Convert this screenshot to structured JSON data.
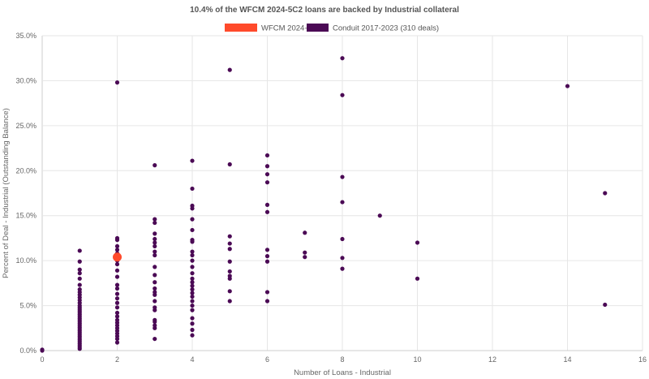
{
  "chart_data": {
    "type": "scatter",
    "title": "10.4% of the WFCM 2024-5C2 loans are backed by Industrial collateral",
    "xlabel": "Number of Loans - Industrial",
    "ylabel": "Percent of Deal - Industrial (Outstanding Balance)",
    "xlim": [
      0,
      16
    ],
    "ylim": [
      0,
      35
    ],
    "x_ticks": [
      "0",
      "2",
      "4",
      "6",
      "8",
      "10",
      "12",
      "14",
      "16"
    ],
    "y_ticks": [
      "0.0%",
      "5.0%",
      "10.0%",
      "15.0%",
      "20.0%",
      "25.0%",
      "30.0%",
      "35.0%"
    ],
    "grid": true,
    "legend_position": "top",
    "series": [
      {
        "name": "WFCM 2024-5C2",
        "color": "#ff4a2b",
        "points": [
          [
            2,
            10.4
          ]
        ]
      },
      {
        "name": "Conduit 2017-2023 (310 deals)",
        "color": "#4b0a55",
        "points": [
          [
            0,
            0.0
          ],
          [
            0,
            0.1
          ],
          [
            1,
            0.2
          ],
          [
            1,
            0.4
          ],
          [
            1,
            0.6
          ],
          [
            1,
            0.8
          ],
          [
            1,
            1.0
          ],
          [
            1,
            1.2
          ],
          [
            1,
            1.4
          ],
          [
            1,
            1.6
          ],
          [
            1,
            1.8
          ],
          [
            1,
            2.0
          ],
          [
            1,
            2.2
          ],
          [
            1,
            2.4
          ],
          [
            1,
            2.6
          ],
          [
            1,
            2.8
          ],
          [
            1,
            3.0
          ],
          [
            1,
            3.2
          ],
          [
            1,
            3.4
          ],
          [
            1,
            3.6
          ],
          [
            1,
            3.8
          ],
          [
            1,
            4.0
          ],
          [
            1,
            4.2
          ],
          [
            1,
            4.4
          ],
          [
            1,
            4.6
          ],
          [
            1,
            4.8
          ],
          [
            1,
            5.0
          ],
          [
            1,
            5.3
          ],
          [
            1,
            5.6
          ],
          [
            1,
            5.9
          ],
          [
            1,
            6.2
          ],
          [
            1,
            6.5
          ],
          [
            1,
            6.8
          ],
          [
            1,
            7.3
          ],
          [
            1,
            8.0
          ],
          [
            1,
            8.6
          ],
          [
            1,
            9.0
          ],
          [
            1,
            9.9
          ],
          [
            1,
            11.1
          ],
          [
            2,
            0.9
          ],
          [
            2,
            1.3
          ],
          [
            2,
            1.6
          ],
          [
            2,
            1.9
          ],
          [
            2,
            2.2
          ],
          [
            2,
            2.5
          ],
          [
            2,
            2.8
          ],
          [
            2,
            3.1
          ],
          [
            2,
            3.4
          ],
          [
            2,
            3.8
          ],
          [
            2,
            4.2
          ],
          [
            2,
            4.8
          ],
          [
            2,
            5.3
          ],
          [
            2,
            5.8
          ],
          [
            2,
            6.3
          ],
          [
            2,
            6.9
          ],
          [
            2,
            7.3
          ],
          [
            2,
            8.2
          ],
          [
            2,
            8.9
          ],
          [
            2,
            9.6
          ],
          [
            2,
            10.0
          ],
          [
            2,
            10.8
          ],
          [
            2,
            11.2
          ],
          [
            2,
            11.6
          ],
          [
            2,
            12.3
          ],
          [
            2,
            12.5
          ],
          [
            2,
            29.8
          ],
          [
            3,
            1.3
          ],
          [
            3,
            2.5
          ],
          [
            3,
            2.8
          ],
          [
            3,
            3.2
          ],
          [
            3,
            3.4
          ],
          [
            3,
            4.5
          ],
          [
            3,
            4.8
          ],
          [
            3,
            5.5
          ],
          [
            3,
            6.2
          ],
          [
            3,
            6.5
          ],
          [
            3,
            6.9
          ],
          [
            3,
            7.6
          ],
          [
            3,
            8.4
          ],
          [
            3,
            9.3
          ],
          [
            3,
            10.6
          ],
          [
            3,
            11.0
          ],
          [
            3,
            11.6
          ],
          [
            3,
            12.0
          ],
          [
            3,
            12.4
          ],
          [
            3,
            13.0
          ],
          [
            3,
            14.2
          ],
          [
            3,
            14.6
          ],
          [
            3,
            20.6
          ],
          [
            4,
            1.7
          ],
          [
            4,
            2.3
          ],
          [
            4,
            3.0
          ],
          [
            4,
            3.6
          ],
          [
            4,
            4.5
          ],
          [
            4,
            5.0
          ],
          [
            4,
            5.5
          ],
          [
            4,
            6.0
          ],
          [
            4,
            6.4
          ],
          [
            4,
            6.8
          ],
          [
            4,
            7.2
          ],
          [
            4,
            7.6
          ],
          [
            4,
            8.0
          ],
          [
            4,
            8.6
          ],
          [
            4,
            9.3
          ],
          [
            4,
            10.0
          ],
          [
            4,
            10.6
          ],
          [
            4,
            11.0
          ],
          [
            4,
            12.1
          ],
          [
            4,
            12.3
          ],
          [
            4,
            13.4
          ],
          [
            4,
            14.6
          ],
          [
            4,
            15.8
          ],
          [
            4,
            16.1
          ],
          [
            4,
            18.0
          ],
          [
            4,
            21.1
          ],
          [
            5,
            5.5
          ],
          [
            5,
            6.6
          ],
          [
            5,
            8.0
          ],
          [
            5,
            8.3
          ],
          [
            5,
            8.8
          ],
          [
            5,
            9.9
          ],
          [
            5,
            11.3
          ],
          [
            5,
            11.9
          ],
          [
            5,
            12.7
          ],
          [
            5,
            20.7
          ],
          [
            5,
            31.2
          ],
          [
            6,
            5.5
          ],
          [
            6,
            6.5
          ],
          [
            6,
            9.9
          ],
          [
            6,
            10.5
          ],
          [
            6,
            11.2
          ],
          [
            6,
            15.4
          ],
          [
            6,
            16.2
          ],
          [
            6,
            18.7
          ],
          [
            6,
            19.6
          ],
          [
            6,
            20.5
          ],
          [
            6,
            21.7
          ],
          [
            7,
            10.4
          ],
          [
            7,
            10.9
          ],
          [
            7,
            13.1
          ],
          [
            8,
            9.1
          ],
          [
            8,
            10.3
          ],
          [
            8,
            12.4
          ],
          [
            8,
            16.5
          ],
          [
            8,
            19.3
          ],
          [
            8,
            28.4
          ],
          [
            8,
            32.5
          ],
          [
            9,
            15.0
          ],
          [
            10,
            8.0
          ],
          [
            10,
            12.0
          ],
          [
            14,
            29.4
          ],
          [
            15,
            5.1
          ],
          [
            15,
            17.5
          ]
        ]
      }
    ]
  }
}
